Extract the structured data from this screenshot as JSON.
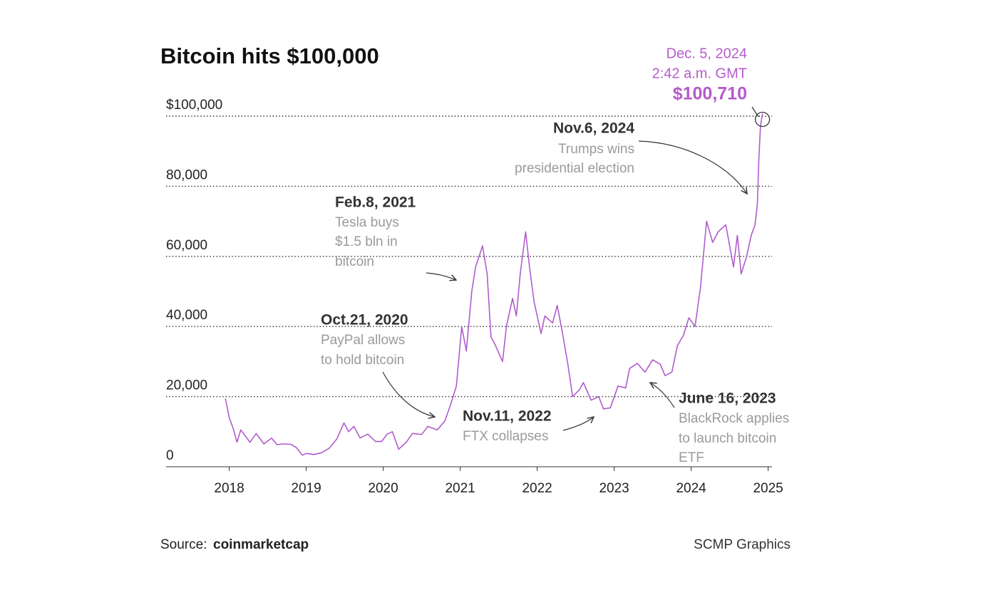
{
  "chart_data": {
    "type": "line",
    "title": "Bitcoin hits $100,000",
    "color": "#b05ccc",
    "x": [
      2017.95,
      2018.0,
      2018.05,
      2018.1,
      2018.15,
      2018.2,
      2018.27,
      2018.35,
      2018.45,
      2018.55,
      2018.62,
      2018.7,
      2018.8,
      2018.87,
      2018.95,
      2019.0,
      2019.1,
      2019.2,
      2019.3,
      2019.4,
      2019.49,
      2019.55,
      2019.62,
      2019.7,
      2019.8,
      2019.9,
      2019.98,
      2020.05,
      2020.12,
      2020.2,
      2020.3,
      2020.38,
      2020.5,
      2020.58,
      2020.7,
      2020.8,
      2020.88,
      2020.95,
      2021.02,
      2021.08,
      2021.15,
      2021.2,
      2021.29,
      2021.35,
      2021.4,
      2021.45,
      2021.55,
      2021.6,
      2021.68,
      2021.73,
      2021.78,
      2021.85,
      2021.9,
      2021.96,
      2022.05,
      2022.1,
      2022.2,
      2022.26,
      2022.33,
      2022.4,
      2022.46,
      2022.55,
      2022.6,
      2022.7,
      2022.8,
      2022.86,
      2022.95,
      2023.05,
      2023.15,
      2023.2,
      2023.3,
      2023.4,
      2023.5,
      2023.6,
      2023.66,
      2023.75,
      2023.82,
      2023.9,
      2023.97,
      2024.05,
      2024.12,
      2024.2,
      2024.28,
      2024.35,
      2024.45,
      2024.55,
      2024.6,
      2024.65,
      2024.72,
      2024.78,
      2024.83,
      2024.86,
      2024.88,
      2024.9,
      2024.926
    ],
    "values": [
      19500,
      14000,
      11000,
      7000,
      10500,
      9000,
      7000,
      9500,
      6500,
      8200,
      6300,
      6500,
      6400,
      5500,
      3300,
      3800,
      3500,
      4000,
      5300,
      8000,
      12500,
      10000,
      11500,
      8200,
      9300,
      7200,
      7200,
      9300,
      10000,
      5000,
      7000,
      9500,
      9200,
      11500,
      10500,
      13000,
      18000,
      23000,
      40000,
      33000,
      50000,
      57000,
      63000,
      55000,
      37000,
      35000,
      30000,
      40000,
      48000,
      43000,
      55000,
      67000,
      57000,
      47000,
      38000,
      43000,
      41000,
      46000,
      38000,
      29000,
      20000,
      22000,
      24000,
      19000,
      20000,
      16500,
      16800,
      23000,
      22500,
      28000,
      29500,
      27000,
      30500,
      29200,
      26000,
      27000,
      34500,
      37500,
      42500,
      40000,
      51000,
      70000,
      64000,
      67000,
      69000,
      57000,
      66000,
      55000,
      60000,
      66000,
      69000,
      75000,
      88000,
      97000,
      100710
    ],
    "xlim": [
      2017.18,
      2025.05
    ],
    "xticks": [
      2018,
      2019,
      2020,
      2021,
      2022,
      2023,
      2024,
      2025
    ],
    "ylim": [
      0,
      100000
    ],
    "yticks": [
      0,
      {
        "value": 20000,
        "label": "20,000"
      },
      {
        "value": 40000,
        "label": "40,000"
      },
      {
        "value": 60000,
        "label": "60,000"
      },
      {
        "value": 80000,
        "label": "80,000"
      },
      {
        "value": 100000,
        "label": "$100,000"
      }
    ],
    "grid": true,
    "peak_annotation": {
      "date": "Dec. 5, 2024",
      "time": "2:42 a.m. GMT",
      "label": "$100,710"
    },
    "annotations": [
      {
        "title": "Nov.6, 2024",
        "text": [
          "Trumps wins",
          "presidential election"
        ]
      },
      {
        "title": "Feb.8, 2021",
        "text": [
          "Tesla buys",
          "$1.5 bln in",
          "bitcoin"
        ]
      },
      {
        "title": "Oct.21, 2020",
        "text": [
          "PayPal allows",
          "to hold bitcoin"
        ]
      },
      {
        "title": "Nov.11, 2022",
        "text": [
          "FTX collapses"
        ]
      },
      {
        "title": "June 16, 2023",
        "text": [
          "BlackRock applies",
          "to launch bitcoin",
          "ETF"
        ]
      }
    ]
  },
  "footer": {
    "source_label": "Source:",
    "source": "coinmarketcap",
    "credit": "SCMP Graphics"
  }
}
